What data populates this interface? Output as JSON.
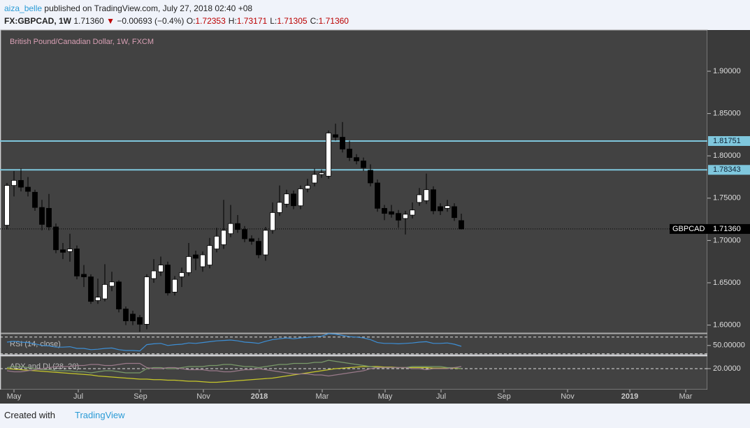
{
  "header": {
    "author": "aiza_belle",
    "published": "published on TradingView.com, July 27, 2018 02:40 +08",
    "symbol": "FX:GBPCAD, 1W",
    "price": "1.71360",
    "arrow": "▼",
    "change": "−0.00693 (−0.4%)",
    "ohlc": [
      {
        "key": "O:",
        "value": "1.72353"
      },
      {
        "key": "H:",
        "value": "1.73171"
      },
      {
        "key": "L:",
        "value": "1.71305"
      },
      {
        "key": "C:",
        "value": "1.71360"
      }
    ]
  },
  "chart_data": [
    {
      "type": "candlestick",
      "title": "British Pound/Canadian Dollar, 1W, FXCM",
      "colors": {
        "up": "#ffffff",
        "down": "#000000"
      },
      "open": [
        1.718,
        1.765,
        1.771,
        1.763,
        1.757,
        1.739,
        1.738,
        1.716,
        1.689,
        1.687,
        1.69,
        1.66,
        1.657,
        1.629,
        1.631,
        1.646,
        1.651,
        1.619,
        1.613,
        1.609,
        1.601,
        1.655,
        1.663,
        1.671,
        1.639,
        1.657,
        1.662,
        1.683,
        1.669,
        1.671,
        1.69,
        1.695,
        1.708,
        1.72,
        1.713,
        1.702,
        1.699,
        1.683,
        1.712,
        1.733,
        1.743,
        1.755,
        1.741,
        1.761,
        1.768,
        1.778,
        1.776,
        1.825,
        1.822,
        1.808,
        1.798,
        1.794,
        1.783,
        1.768,
        1.738,
        1.734,
        1.732,
        1.726,
        1.73,
        1.745,
        1.747,
        1.76,
        1.74,
        1.738,
        1.74,
        1.72353
      ],
      "high": [
        1.768,
        1.782,
        1.785,
        1.775,
        1.76,
        1.748,
        1.755,
        1.72,
        1.697,
        1.708,
        1.694,
        1.671,
        1.66,
        1.655,
        1.672,
        1.663,
        1.653,
        1.622,
        1.617,
        1.612,
        1.66,
        1.678,
        1.681,
        1.675,
        1.658,
        1.668,
        1.697,
        1.688,
        1.687,
        1.703,
        1.715,
        1.748,
        1.742,
        1.73,
        1.717,
        1.706,
        1.703,
        1.716,
        1.745,
        1.765,
        1.76,
        1.759,
        1.765,
        1.773,
        1.785,
        1.784,
        1.83,
        1.838,
        1.84,
        1.818,
        1.802,
        1.798,
        1.79,
        1.772,
        1.742,
        1.742,
        1.736,
        1.735,
        1.745,
        1.762,
        1.779,
        1.764,
        1.744,
        1.748,
        1.744,
        1.73171
      ],
      "low": [
        1.713,
        1.752,
        1.758,
        1.752,
        1.735,
        1.712,
        1.712,
        1.685,
        1.678,
        1.675,
        1.654,
        1.645,
        1.625,
        1.625,
        1.628,
        1.64,
        1.615,
        1.6,
        1.6,
        1.592,
        1.595,
        1.65,
        1.658,
        1.635,
        1.635,
        1.645,
        1.658,
        1.665,
        1.663,
        1.667,
        1.686,
        1.69,
        1.704,
        1.709,
        1.698,
        1.695,
        1.679,
        1.676,
        1.708,
        1.729,
        1.739,
        1.737,
        1.737,
        1.757,
        1.764,
        1.774,
        1.773,
        1.818,
        1.804,
        1.794,
        1.79,
        1.782,
        1.764,
        1.734,
        1.724,
        1.727,
        1.715,
        1.707,
        1.726,
        1.741,
        1.743,
        1.731,
        1.73,
        1.734,
        1.723,
        1.71305
      ],
      "close": [
        1.765,
        1.771,
        1.763,
        1.758,
        1.739,
        1.719,
        1.716,
        1.689,
        1.686,
        1.69,
        1.658,
        1.657,
        1.628,
        1.633,
        1.648,
        1.651,
        1.619,
        1.605,
        1.605,
        1.601,
        1.657,
        1.664,
        1.671,
        1.638,
        1.654,
        1.662,
        1.681,
        1.679,
        1.683,
        1.694,
        1.705,
        1.712,
        1.72,
        1.713,
        1.702,
        1.699,
        1.683,
        1.712,
        1.733,
        1.745,
        1.755,
        1.741,
        1.761,
        1.765,
        1.778,
        1.78,
        1.827,
        1.822,
        1.808,
        1.798,
        1.794,
        1.786,
        1.768,
        1.738,
        1.732,
        1.731,
        1.724,
        1.731,
        1.736,
        1.754,
        1.76,
        1.735,
        1.735,
        1.741,
        1.727,
        1.7136
      ],
      "ylim": [
        1.5906,
        1.9487
      ],
      "yticks": [
        {
          "value": 1.6,
          "label": "1.60000"
        },
        {
          "value": 1.65,
          "label": "1.65000"
        },
        {
          "value": 1.7,
          "label": "1.70000"
        },
        {
          "value": 1.75,
          "label": "1.75000"
        },
        {
          "value": 1.8,
          "label": "1.80000"
        },
        {
          "value": 1.85,
          "label": "1.85000"
        },
        {
          "value": 1.9,
          "label": "1.90000"
        }
      ],
      "levels": [
        1.81751,
        1.78343
      ],
      "level_color": "#7fc7dd",
      "last": {
        "value": 1.7136,
        "label": "1.71360"
      },
      "last_symbol": "GBPCAD",
      "xticks": [
        {
          "value": 1,
          "label": "May"
        },
        {
          "value": 10.2,
          "label": "Jul"
        },
        {
          "value": 19.1,
          "label": "Sep"
        },
        {
          "value": 28.1,
          "label": "Nov"
        },
        {
          "value": 36.1,
          "label": "2018"
        },
        {
          "value": 45.1,
          "label": "Mar"
        },
        {
          "value": 54.1,
          "label": "May"
        },
        {
          "value": 62.1,
          "label": "Jul"
        },
        {
          "value": 71.1,
          "label": "Sep"
        },
        {
          "value": 80.2,
          "label": "Nov"
        },
        {
          "value": 89.1,
          "label": "2019"
        },
        {
          "value": 97.1,
          "label": "Mar"
        }
      ]
    },
    {
      "type": "line",
      "title": "RSI (14, close)",
      "series": [
        {
          "color": "#3d8fd6",
          "values": [
            58,
            60,
            58,
            57,
            54,
            50,
            49,
            46,
            46,
            47,
            43,
            43,
            40,
            41,
            43,
            44,
            40,
            38,
            38,
            37,
            52,
            54,
            55,
            50,
            52,
            53,
            56,
            55,
            57,
            59,
            61,
            62,
            63,
            61,
            58,
            57,
            55,
            60,
            64,
            66,
            68,
            66,
            68,
            69,
            71,
            72,
            78,
            77,
            74,
            71,
            70,
            68,
            64,
            57,
            55,
            55,
            54,
            55,
            56,
            58,
            59,
            55,
            55,
            56,
            53,
            48
          ]
        }
      ],
      "ylim": [
        28,
        78
      ],
      "yticks": [
        {
          "value": 50,
          "label": "50.00000"
        }
      ],
      "hlines": [
        30,
        70
      ]
    },
    {
      "type": "line",
      "title": "ADX and DI (28, 20)",
      "series": [
        {
          "color": "#c8c82a",
          "values": [
            20,
            19.5,
            19,
            18.5,
            18,
            17.5,
            17,
            16.5,
            16,
            15.5,
            15,
            14.5,
            14,
            13,
            12.5,
            12,
            11.5,
            11,
            10.5,
            10,
            10,
            9.5,
            9.5,
            9,
            9,
            8.5,
            8,
            8,
            7.5,
            7,
            7,
            7.5,
            8,
            8.5,
            9,
            9.5,
            10,
            10.5,
            11,
            12,
            13,
            14,
            15,
            16,
            17,
            18,
            19,
            20,
            20.5,
            21,
            21.5,
            22,
            22,
            22,
            21.5,
            21.5,
            21,
            21,
            21,
            21,
            21,
            20.5,
            20.5,
            20.5,
            20.5,
            20
          ]
        },
        {
          "color": "#7a9a6a",
          "values": [
            21,
            22,
            22,
            21,
            20,
            19,
            19,
            18,
            18,
            18,
            17,
            17,
            16,
            17,
            18,
            18,
            17,
            16,
            16,
            16,
            20,
            21,
            21,
            20,
            20,
            21,
            22,
            22,
            22,
            23,
            23,
            24,
            24,
            23,
            22,
            22,
            21,
            22,
            23,
            24,
            24,
            25,
            25,
            25,
            26,
            26,
            28,
            27,
            26,
            25,
            24,
            23,
            22,
            21,
            21,
            21,
            21,
            21,
            22,
            22,
            22,
            22,
            22,
            21,
            21,
            20
          ]
        },
        {
          "color": "#9a7a8a",
          "values": [
            18,
            17,
            17,
            18,
            19,
            20,
            21,
            22,
            22,
            22,
            23,
            23,
            24,
            24,
            23,
            23,
            24,
            25,
            25,
            25,
            21,
            20,
            20,
            21,
            21,
            20,
            19,
            19,
            19,
            18,
            18,
            17,
            17,
            18,
            19,
            19,
            20,
            19,
            18,
            17,
            16,
            15,
            15,
            15,
            14,
            14,
            13,
            14,
            15,
            16,
            17,
            18,
            20,
            21,
            21,
            21,
            21,
            21,
            20,
            20,
            19,
            20,
            20,
            20,
            21,
            22
          ]
        }
      ],
      "ylim": [
        0,
        32
      ],
      "yticks": [
        {
          "value": 20,
          "label": "20.0000"
        }
      ],
      "hlines": [
        20
      ]
    }
  ],
  "footer": {
    "created": "Created with",
    "brand": "TradingView"
  }
}
